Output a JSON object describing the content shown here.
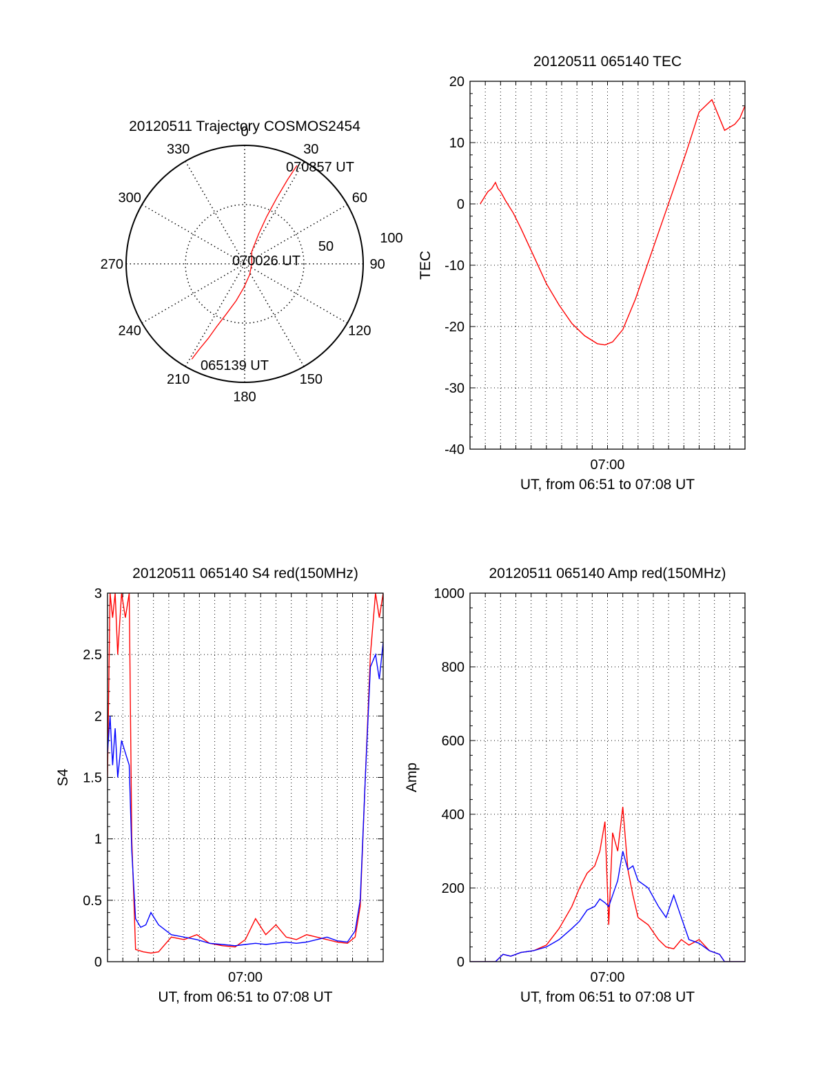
{
  "colors": {
    "red": "#ff0000",
    "blue": "#0000ff",
    "axis": "#000000",
    "grid": "#000000"
  },
  "chart_data": [
    {
      "type": "polar",
      "title": "20120511 Trajectory COSMOS2454",
      "angle_labels": [
        "0",
        "30",
        "60",
        "90",
        "120",
        "150",
        "180",
        "210",
        "240",
        "270",
        "300",
        "330"
      ],
      "angle_values": [
        0,
        30,
        60,
        90,
        120,
        150,
        180,
        210,
        240,
        270,
        300,
        330
      ],
      "radial_labels": [
        "50",
        "100"
      ],
      "radial_values": [
        50,
        100
      ],
      "annotations": [
        "070857 UT",
        "070026 UT",
        "065139 UT"
      ],
      "series": [
        {
          "color": "#ff0000",
          "points": [
            {
              "az": 209,
              "r": 92
            },
            {
              "az": 208,
              "r": 82
            },
            {
              "az": 206,
              "r": 70
            },
            {
              "az": 204,
              "r": 58
            },
            {
              "az": 200,
              "r": 45
            },
            {
              "az": 193,
              "r": 32
            },
            {
              "az": 182,
              "r": 20
            },
            {
              "az": 155,
              "r": 10
            },
            {
              "az": 90,
              "r": 6
            },
            {
              "az": 30,
              "r": 12
            },
            {
              "az": 25,
              "r": 28
            },
            {
              "az": 25,
              "r": 44
            },
            {
              "az": 26,
              "r": 62
            },
            {
              "az": 27,
              "r": 80
            },
            {
              "az": 28,
              "r": 94
            }
          ]
        }
      ]
    },
    {
      "type": "line",
      "title": "20120511 065140 TEC",
      "xlabel": "UT, from 06:51 to 07:08 UT",
      "ylabel": "TEC",
      "xtick_labels": [
        "07:00"
      ],
      "xtick_values": [
        540
      ],
      "ylim": [
        -40,
        20
      ],
      "yticks": [
        "20",
        "10",
        "0",
        "-10",
        "-20",
        "-30",
        "-40"
      ],
      "ytick_values": [
        20,
        10,
        0,
        -10,
        -20,
        -30,
        -40
      ],
      "x_unit": "seconds from 06:51",
      "xlim": [
        0,
        1080
      ],
      "series": [
        {
          "color": "#ff0000",
          "x": [
            40,
            55,
            70,
            85,
            100,
            110,
            120,
            140,
            170,
            200,
            250,
            300,
            350,
            400,
            450,
            500,
            530,
            560,
            600,
            650,
            700,
            750,
            800,
            850,
            900,
            950,
            1000,
            1040,
            1060,
            1080
          ],
          "y": [
            0,
            1,
            2,
            2.5,
            3.5,
            2.5,
            2,
            0.5,
            -1.5,
            -4,
            -8.5,
            -13,
            -16.5,
            -19.5,
            -21.5,
            -22.8,
            -23,
            -22.5,
            -20.5,
            -15.5,
            -9.5,
            -3.5,
            2.5,
            8.5,
            15,
            17,
            12,
            13,
            14,
            16
          ]
        }
      ]
    },
    {
      "type": "line",
      "title": "20120511 065140 S4 red(150MHz)",
      "xlabel": "UT, from 06:51 to 07:08 UT",
      "ylabel": "S4",
      "xtick_labels": [
        "07:00"
      ],
      "xtick_values": [
        540
      ],
      "ylim": [
        0,
        3
      ],
      "yticks": [
        "3",
        "2.5",
        "2",
        "1.5",
        "1",
        "0.5",
        "0"
      ],
      "ytick_values": [
        3,
        2.5,
        2,
        1.5,
        1,
        0.5,
        0
      ],
      "x_unit": "seconds from 06:51",
      "xlim": [
        0,
        1080
      ],
      "series": [
        {
          "color": "#ff0000",
          "x": [
            0,
            10,
            20,
            30,
            40,
            55,
            70,
            85,
            95,
            110,
            140,
            170,
            200,
            250,
            300,
            350,
            400,
            450,
            500,
            540,
            580,
            620,
            660,
            700,
            740,
            780,
            820,
            860,
            900,
            940,
            970,
            990,
            1010,
            1030,
            1050,
            1065,
            1080
          ],
          "y": [
            1.5,
            3,
            2.8,
            3,
            2.5,
            3,
            2.8,
            3,
            1.0,
            0.1,
            0.08,
            0.07,
            0.08,
            0.2,
            0.18,
            0.22,
            0.15,
            0.13,
            0.12,
            0.18,
            0.35,
            0.22,
            0.3,
            0.2,
            0.18,
            0.22,
            0.2,
            0.18,
            0.16,
            0.15,
            0.2,
            0.45,
            1.5,
            2.5,
            3,
            2.8,
            3
          ]
        },
        {
          "color": "#0000ff",
          "x": [
            0,
            10,
            20,
            30,
            40,
            55,
            70,
            85,
            95,
            110,
            130,
            150,
            170,
            200,
            250,
            300,
            350,
            400,
            450,
            500,
            540,
            580,
            620,
            660,
            700,
            740,
            780,
            820,
            860,
            900,
            940,
            970,
            990,
            1010,
            1030,
            1050,
            1065,
            1080
          ],
          "y": [
            1.7,
            2.0,
            1.6,
            1.9,
            1.5,
            1.8,
            1.7,
            1.6,
            0.9,
            0.35,
            0.28,
            0.3,
            0.4,
            0.3,
            0.22,
            0.2,
            0.18,
            0.15,
            0.14,
            0.13,
            0.14,
            0.15,
            0.14,
            0.15,
            0.16,
            0.15,
            0.16,
            0.18,
            0.2,
            0.17,
            0.16,
            0.25,
            0.5,
            1.5,
            2.4,
            2.5,
            2.3,
            2.6
          ]
        }
      ]
    },
    {
      "type": "line",
      "title": "20120511 065140 Amp red(150MHz)",
      "xlabel": "UT, from 06:51 to 07:08 UT",
      "ylabel": "Amp",
      "xtick_labels": [
        "07:00"
      ],
      "xtick_values": [
        540
      ],
      "ylim": [
        0,
        1000
      ],
      "yticks": [
        "1000",
        "800",
        "600",
        "400",
        "200",
        "0"
      ],
      "ytick_values": [
        1000,
        800,
        600,
        400,
        200,
        0
      ],
      "x_unit": "seconds from 06:51",
      "xlim": [
        0,
        1080
      ],
      "series": [
        {
          "color": "#ff0000",
          "x": [
            0,
            60,
            100,
            130,
            160,
            200,
            250,
            300,
            350,
            400,
            430,
            460,
            490,
            510,
            530,
            545,
            560,
            580,
            600,
            620,
            640,
            660,
            700,
            740,
            770,
            800,
            830,
            860,
            900,
            940,
            980,
            1000,
            1080
          ],
          "y": [
            0,
            0,
            0,
            20,
            15,
            25,
            30,
            45,
            90,
            150,
            200,
            240,
            260,
            300,
            380,
            100,
            350,
            300,
            420,
            250,
            180,
            120,
            100,
            60,
            40,
            35,
            60,
            45,
            60,
            30,
            20,
            0,
            0
          ]
        },
        {
          "color": "#0000ff",
          "x": [
            0,
            60,
            100,
            130,
            160,
            200,
            250,
            300,
            350,
            400,
            430,
            460,
            490,
            510,
            530,
            545,
            560,
            580,
            600,
            620,
            640,
            660,
            700,
            740,
            770,
            800,
            830,
            860,
            900,
            940,
            980,
            1000,
            1080
          ],
          "y": [
            0,
            0,
            0,
            20,
            15,
            25,
            30,
            40,
            60,
            90,
            110,
            140,
            150,
            170,
            160,
            150,
            180,
            220,
            300,
            250,
            260,
            220,
            200,
            150,
            120,
            180,
            120,
            60,
            50,
            30,
            20,
            0,
            0
          ]
        }
      ]
    }
  ]
}
